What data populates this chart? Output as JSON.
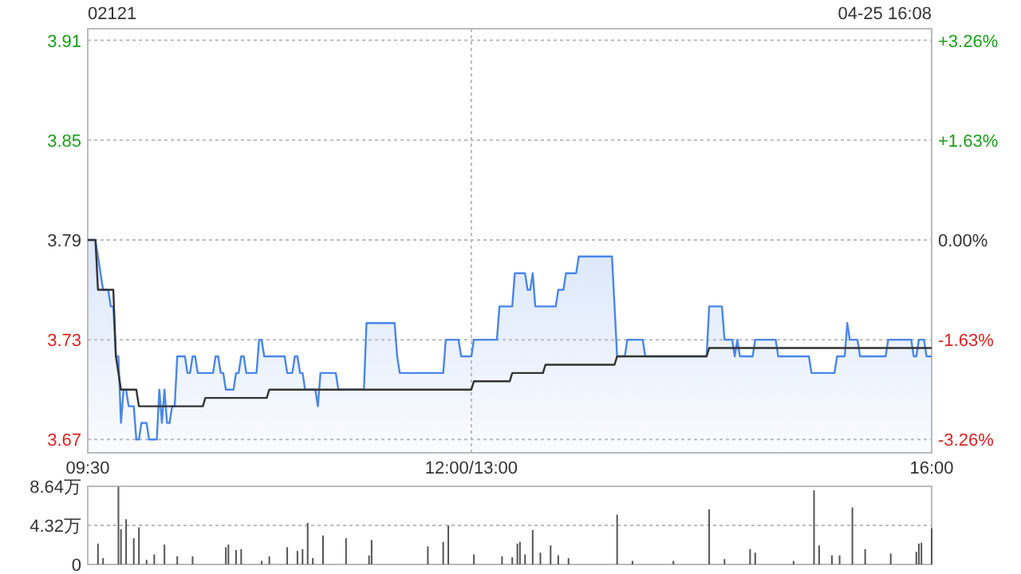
{
  "chart_data": [
    {
      "type": "area",
      "title": "02121",
      "subtitle": "04-25 16:08",
      "ylim": [
        3.662,
        3.917
      ],
      "y2lim": [
        -3.48,
        3.45
      ],
      "categories": [
        "09:30",
        null,
        null,
        null,
        null,
        null,
        null,
        null,
        null,
        null,
        null,
        null,
        null,
        null,
        null,
        null,
        null,
        null,
        null,
        null,
        null,
        null,
        null,
        null,
        null,
        null,
        null,
        null,
        null,
        null,
        null,
        null,
        null,
        null,
        null,
        null,
        null,
        null,
        null,
        null,
        null,
        null,
        null,
        null,
        null,
        null,
        null,
        null,
        null,
        null,
        null,
        null,
        null,
        null,
        null,
        null,
        null,
        null,
        null,
        null,
        null,
        null,
        null,
        null,
        null,
        null,
        null,
        null,
        null,
        null,
        null,
        null,
        null,
        null,
        null,
        null,
        null,
        null,
        null,
        null,
        null,
        null,
        null,
        null,
        null,
        null,
        null,
        null,
        null,
        null,
        null,
        null,
        null,
        null,
        null,
        null,
        null,
        null,
        null,
        null,
        null,
        null,
        null,
        null,
        null,
        null,
        null,
        null,
        null,
        null,
        null,
        null,
        null,
        null,
        null,
        null,
        null,
        null,
        null,
        null,
        null,
        null,
        null,
        null,
        null,
        null,
        null,
        null,
        null,
        null,
        null,
        null,
        null,
        null,
        null,
        null,
        null,
        null,
        null,
        null,
        null,
        null,
        null,
        null,
        null,
        null,
        null,
        null,
        null,
        null,
        "12:00/13:00",
        null,
        null,
        null,
        null,
        null,
        null,
        null,
        null,
        null,
        null,
        null,
        null,
        null,
        null,
        null,
        null,
        null,
        null,
        null,
        null,
        null,
        null,
        null,
        null,
        null,
        null,
        null,
        null,
        null,
        null,
        null,
        null,
        null,
        null,
        null,
        null,
        null,
        null,
        null,
        null,
        null,
        null,
        null,
        null,
        null,
        null,
        null,
        null,
        null,
        null,
        null,
        null,
        null,
        null,
        null,
        null,
        null,
        null,
        null,
        null,
        null,
        null,
        null,
        null,
        null,
        null,
        null,
        null,
        null,
        null,
        null,
        null,
        null,
        null,
        null,
        null,
        null,
        null,
        null,
        null,
        null,
        null,
        null,
        null,
        null,
        null,
        null,
        null,
        null,
        null,
        null,
        null,
        null,
        null,
        null,
        null,
        null,
        null,
        null,
        null,
        null,
        null,
        null,
        null,
        null,
        null,
        null,
        null,
        null,
        null,
        null,
        null,
        null,
        null,
        null,
        null,
        null,
        null,
        null,
        null,
        null,
        null,
        null,
        null,
        null,
        null,
        null,
        null,
        null,
        null,
        null,
        null,
        null,
        null,
        null,
        null,
        null,
        null,
        null,
        null,
        null,
        null,
        null,
        null,
        null,
        null,
        null,
        null,
        null,
        null,
        null,
        null,
        null,
        null,
        null,
        null,
        null,
        null,
        null,
        null,
        null,
        null,
        null,
        null,
        null,
        null,
        null,
        null,
        null,
        null,
        null,
        null,
        null,
        null,
        null,
        null,
        null,
        null,
        null,
        "16:00"
      ],
      "yticks": [
        3.67,
        3.73,
        3.79,
        3.85,
        3.91
      ],
      "y2ticks": [
        {
          "value": -3.26,
          "label": "-3.26%"
        },
        {
          "value": -1.63,
          "label": "-1.63%"
        },
        {
          "value": 0,
          "label": "0.00%"
        },
        {
          "value": 1.63,
          "label": "+1.63%"
        },
        {
          "value": 3.26,
          "label": "+3.26%"
        }
      ],
      "grid": true,
      "series": [
        {
          "color": "#4a86e8",
          "values": [
            3.79,
            3.79,
            3.79,
            3.79,
            3.78,
            3.77,
            3.76,
            3.76,
            3.76,
            3.75,
            3.75,
            3.72,
            3.72,
            3.68,
            3.7,
            3.7,
            3.69,
            3.69,
            3.69,
            3.67,
            3.67,
            3.68,
            3.68,
            3.68,
            3.67,
            3.67,
            3.67,
            3.67,
            3.7,
            3.68,
            3.7,
            3.68,
            3.68,
            3.69,
            3.69,
            3.72,
            3.72,
            3.72,
            3.72,
            3.71,
            3.71,
            3.72,
            3.72,
            3.71,
            3.71,
            3.71,
            3.71,
            3.71,
            3.71,
            3.71,
            3.72,
            3.72,
            3.71,
            3.71,
            3.7,
            3.7,
            3.7,
            3.7,
            3.71,
            3.71,
            3.72,
            3.72,
            3.71,
            3.71,
            3.71,
            3.71,
            3.71,
            3.73,
            3.73,
            3.72,
            3.72,
            3.72,
            3.72,
            3.72,
            3.72,
            3.72,
            3.72,
            3.72,
            3.71,
            3.71,
            3.71,
            3.72,
            3.72,
            3.71,
            3.71,
            3.7,
            3.7,
            3.7,
            3.7,
            3.7,
            3.69,
            3.71,
            3.71,
            3.71,
            3.71,
            3.71,
            3.71,
            3.71,
            3.7,
            3.7,
            3.7,
            3.7,
            3.7,
            3.7,
            3.7,
            3.7,
            3.7,
            3.7,
            3.7,
            3.74,
            3.74,
            3.74,
            3.74,
            3.74,
            3.74,
            3.74,
            3.74,
            3.74,
            3.74,
            3.74,
            3.74,
            3.72,
            3.71,
            3.71,
            3.71,
            3.71,
            3.71,
            3.71,
            3.71,
            3.71,
            3.71,
            3.71,
            3.71,
            3.71,
            3.71,
            3.71,
            3.71,
            3.71,
            3.71,
            3.71,
            3.73,
            3.73,
            3.73,
            3.73,
            3.73,
            3.73,
            3.72,
            3.72,
            3.72,
            3.72,
            3.72,
            3.73,
            3.73,
            3.73,
            3.73,
            3.73,
            3.73,
            3.73,
            3.73,
            3.73,
            3.73,
            3.75,
            3.75,
            3.75,
            3.75,
            3.75,
            3.75,
            3.77,
            3.77,
            3.77,
            3.77,
            3.77,
            3.76,
            3.76,
            3.77,
            3.75,
            3.75,
            3.75,
            3.75,
            3.75,
            3.75,
            3.75,
            3.75,
            3.75,
            3.76,
            3.76,
            3.76,
            3.77,
            3.77,
            3.77,
            3.77,
            3.77,
            3.78,
            3.78,
            3.78,
            3.78,
            3.78,
            3.78,
            3.78,
            3.78,
            3.78,
            3.78,
            3.78,
            3.78,
            3.78,
            3.78,
            3.75,
            3.72,
            3.72,
            3.72,
            3.72,
            3.73,
            3.73,
            3.73,
            3.73,
            3.73,
            3.73,
            3.73,
            3.72,
            3.72,
            3.72,
            3.72,
            3.72,
            3.72,
            3.72,
            3.72,
            3.72,
            3.72,
            3.72,
            3.72,
            3.72,
            3.72,
            3.72,
            3.72,
            3.72,
            3.72,
            3.72,
            3.72,
            3.72,
            3.72,
            3.72,
            3.72,
            3.72,
            3.75,
            3.75,
            3.75,
            3.75,
            3.75,
            3.75,
            3.73,
            3.73,
            3.73,
            3.73,
            3.72,
            3.73,
            3.72,
            3.72,
            3.72,
            3.72,
            3.72,
            3.72,
            3.73,
            3.73,
            3.73,
            3.73,
            3.73,
            3.73,
            3.73,
            3.73,
            3.73,
            3.72,
            3.72,
            3.72,
            3.72,
            3.72,
            3.72,
            3.72,
            3.72,
            3.72,
            3.72,
            3.72,
            3.72,
            3.72,
            3.71,
            3.71,
            3.71,
            3.71,
            3.71,
            3.71,
            3.71,
            3.71,
            3.71,
            3.71,
            3.72,
            3.72,
            3.72,
            3.72,
            3.74,
            3.73,
            3.73,
            3.73,
            3.73,
            3.72,
            3.72,
            3.72,
            3.72,
            3.72,
            3.72,
            3.72,
            3.72,
            3.72,
            3.72,
            3.72,
            3.73,
            3.73,
            3.73,
            3.73,
            3.73,
            3.73,
            3.73,
            3.73,
            3.73,
            3.73,
            3.72,
            3.72,
            3.73,
            3.73,
            3.73,
            3.72,
            3.72,
            3.72
          ]
        },
        {
          "type": "line",
          "color": "#333333",
          "values": [
            3.79,
            3.79,
            3.79,
            3.79,
            3.76,
            3.76,
            3.76,
            3.76,
            3.76,
            3.76,
            3.76,
            3.72,
            3.71,
            3.7,
            3.7,
            3.7,
            3.7,
            3.7,
            3.7,
            3.7,
            3.69,
            3.69,
            3.69,
            3.69,
            3.69,
            3.69,
            3.69,
            3.69,
            3.69,
            3.69,
            3.69,
            3.69,
            3.69,
            3.69,
            3.69,
            3.69,
            3.69,
            3.69,
            3.69,
            3.69,
            3.69,
            3.69,
            3.69,
            3.69,
            3.69,
            3.69,
            3.695,
            3.695,
            3.695,
            3.695,
            3.695,
            3.695,
            3.695,
            3.695,
            3.695,
            3.695,
            3.695,
            3.695,
            3.695,
            3.695,
            3.695,
            3.695,
            3.695,
            3.695,
            3.695,
            3.695,
            3.695,
            3.695,
            3.695,
            3.695,
            3.695,
            3.7,
            3.7,
            3.7,
            3.7,
            3.7,
            3.7,
            3.7,
            3.7,
            3.7,
            3.7,
            3.7,
            3.7,
            3.7,
            3.7,
            3.7,
            3.7,
            3.7,
            3.7,
            3.7,
            3.7,
            3.7,
            3.7,
            3.7,
            3.7,
            3.7,
            3.7,
            3.7,
            3.7,
            3.7,
            3.7,
            3.7,
            3.7,
            3.7,
            3.7,
            3.7,
            3.7,
            3.7,
            3.7,
            3.7,
            3.7,
            3.7,
            3.7,
            3.7,
            3.7,
            3.7,
            3.7,
            3.7,
            3.7,
            3.7,
            3.7,
            3.7,
            3.7,
            3.7,
            3.7,
            3.7,
            3.7,
            3.7,
            3.7,
            3.7,
            3.7,
            3.7,
            3.7,
            3.7,
            3.7,
            3.7,
            3.7,
            3.7,
            3.7,
            3.7,
            3.7,
            3.7,
            3.7,
            3.7,
            3.7,
            3.7,
            3.7,
            3.7,
            3.7,
            3.7,
            3.7,
            3.705,
            3.705,
            3.705,
            3.705,
            3.705,
            3.705,
            3.705,
            3.705,
            3.705,
            3.705,
            3.705,
            3.705,
            3.705,
            3.705,
            3.705,
            3.71,
            3.71,
            3.71,
            3.71,
            3.71,
            3.71,
            3.71,
            3.71,
            3.71,
            3.71,
            3.71,
            3.71,
            3.71,
            3.715,
            3.715,
            3.715,
            3.715,
            3.715,
            3.715,
            3.715,
            3.715,
            3.715,
            3.715,
            3.715,
            3.715,
            3.715,
            3.715,
            3.715,
            3.715,
            3.715,
            3.715,
            3.715,
            3.715,
            3.715,
            3.715,
            3.715,
            3.715,
            3.715,
            3.715,
            3.715,
            3.715,
            3.72,
            3.72,
            3.72,
            3.72,
            3.72,
            3.72,
            3.72,
            3.72,
            3.72,
            3.72,
            3.72,
            3.72,
            3.72,
            3.72,
            3.72,
            3.72,
            3.72,
            3.72,
            3.72,
            3.72,
            3.72,
            3.72,
            3.72,
            3.72,
            3.72,
            3.72,
            3.72,
            3.72,
            3.72,
            3.72,
            3.72,
            3.72,
            3.72,
            3.72,
            3.72,
            3.72,
            3.725,
            3.725,
            3.725,
            3.725,
            3.725,
            3.725,
            3.725,
            3.725,
            3.725,
            3.725,
            3.725,
            3.725,
            3.725,
            3.725,
            3.725,
            3.725,
            3.725,
            3.725,
            3.725,
            3.725,
            3.725,
            3.725,
            3.725,
            3.725,
            3.725,
            3.725,
            3.725,
            3.725,
            3.725,
            3.725,
            3.725,
            3.725,
            3.725,
            3.725,
            3.725,
            3.725,
            3.725,
            3.725,
            3.725,
            3.725,
            3.725,
            3.725,
            3.725,
            3.725,
            3.725,
            3.725,
            3.725,
            3.725,
            3.725,
            3.725,
            3.725,
            3.725,
            3.725,
            3.725,
            3.725,
            3.725,
            3.725,
            3.725,
            3.725,
            3.725,
            3.725,
            3.725,
            3.725,
            3.725,
            3.725,
            3.725,
            3.725,
            3.725,
            3.725,
            3.725,
            3.725,
            3.725,
            3.725,
            3.725,
            3.725,
            3.725,
            3.725,
            3.725,
            3.725,
            3.725,
            3.725,
            3.725,
            3.725,
            3.725,
            3.725,
            3.725,
            3.725,
            3.725
          ]
        }
      ]
    },
    {
      "type": "bar",
      "ylim": [
        0,
        8.64
      ],
      "yticks": [
        0,
        {
          "value": 4.32,
          "label": "4.32万"
        },
        {
          "value": 8.64,
          "label": "8.64万"
        }
      ],
      "tick_labels": "y",
      "grid": "y",
      "color": "#555555",
      "categories": [
        null,
        null,
        null,
        null,
        null,
        null,
        null,
        null,
        null,
        null,
        null,
        null,
        null,
        null,
        null,
        null,
        null,
        null,
        null,
        null,
        null,
        null,
        null,
        null,
        null,
        null,
        null,
        null,
        null,
        null,
        null,
        null,
        null,
        null,
        null,
        null,
        null,
        null,
        null,
        null,
        null,
        null,
        null,
        null,
        null,
        null,
        null,
        null,
        null,
        null,
        null,
        null,
        null,
        null,
        null,
        null,
        null,
        null,
        null,
        null,
        null,
        null,
        null,
        null,
        null,
        null,
        null,
        null,
        null,
        null,
        null,
        null,
        null,
        null,
        null,
        null,
        null,
        null,
        null,
        null,
        null,
        null,
        null,
        null,
        null,
        null,
        null,
        null,
        null,
        null,
        null,
        null,
        null,
        null,
        null,
        null,
        null,
        null,
        null,
        null,
        null,
        null,
        null,
        null,
        null,
        null,
        null,
        null,
        null,
        null,
        null,
        null,
        null,
        null,
        null,
        null,
        null,
        null,
        null,
        null,
        null,
        null,
        null,
        null,
        null,
        null,
        null,
        null,
        null,
        null,
        null,
        null,
        null,
        null,
        null,
        null,
        null,
        null,
        null,
        null,
        null,
        null,
        null,
        null,
        null,
        null,
        null,
        null,
        null,
        null,
        null,
        null,
        null,
        null,
        null,
        null,
        null,
        null,
        null,
        null,
        null,
        null,
        null,
        null,
        null,
        null,
        null,
        null,
        null,
        null,
        null,
        null,
        null,
        null,
        null,
        null,
        null,
        null,
        null,
        null,
        null,
        null,
        null,
        null,
        null,
        null,
        null,
        null,
        null,
        null,
        null,
        null,
        null,
        null,
        null,
        null,
        null,
        null,
        null,
        null,
        null,
        null,
        null,
        null,
        null,
        null,
        null,
        null,
        null,
        null,
        null,
        null,
        null,
        null,
        null,
        null,
        null,
        null,
        null,
        null,
        null,
        null,
        null,
        null,
        null,
        null,
        null,
        null,
        null,
        null,
        null,
        null,
        null,
        null,
        null,
        null,
        null,
        null,
        null,
        null,
        null,
        null,
        null,
        null,
        null,
        null,
        null,
        null,
        null,
        null,
        null,
        null,
        null,
        null,
        null,
        null,
        null,
        null,
        null,
        null,
        null,
        null,
        null,
        null,
        null,
        null,
        null,
        null,
        null,
        null,
        null,
        null,
        null,
        null,
        null,
        null,
        null,
        null,
        null,
        null,
        null,
        null,
        null,
        null,
        null,
        null,
        null,
        null,
        null,
        null,
        null,
        null,
        null,
        null,
        null,
        null,
        null,
        null,
        null,
        null,
        null,
        null,
        null,
        null,
        null,
        null,
        null,
        null,
        null,
        null,
        null,
        null,
        null,
        null,
        null,
        null,
        null,
        null,
        null,
        null,
        null,
        null,
        null,
        null,
        null,
        null,
        null,
        null,
        null,
        null,
        null
      ],
      "values": [
        null,
        null,
        null,
        null,
        2.3,
        null,
        0.7,
        null,
        null,
        null,
        null,
        null,
        8.6,
        3.9,
        null,
        5.0,
        null,
        null,
        2.9,
        null,
        4.1,
        null,
        null,
        0.5,
        null,
        null,
        1.1,
        null,
        null,
        null,
        2.2,
        null,
        null,
        null,
        null,
        0.9,
        null,
        null,
        null,
        null,
        null,
        0.9,
        null,
        null,
        null,
        null,
        null,
        null,
        null,
        null,
        null,
        null,
        null,
        null,
        1.9,
        2.2,
        null,
        null,
        1.6,
        null,
        1.7,
        null,
        null,
        null,
        null,
        null,
        null,
        null,
        0.4,
        null,
        null,
        0.9,
        null,
        null,
        null,
        null,
        null,
        null,
        1.9,
        null,
        null,
        null,
        1.5,
        null,
        1.7,
        null,
        4.6,
        null,
        0.7,
        null,
        null,
        null,
        3.2,
        null,
        null,
        null,
        null,
        null,
        null,
        null,
        null,
        2.9,
        null,
        null,
        null,
        null,
        null,
        null,
        null,
        null,
        1.0,
        2.7,
        null,
        null,
        null,
        null,
        null,
        null,
        null,
        null,
        null,
        null,
        null,
        null,
        null,
        null,
        null,
        null,
        null,
        null,
        null,
        null,
        null,
        2.0,
        null,
        null,
        null,
        null,
        null,
        2.5,
        null,
        4.3,
        null,
        null,
        null,
        null,
        null,
        null,
        null,
        null,
        null,
        1.1,
        null,
        null,
        null,
        null,
        null,
        null,
        null,
        null,
        null,
        null,
        0.9,
        null,
        null,
        null,
        0.8,
        null,
        2.3,
        2.5,
        null,
        1.1,
        null,
        null,
        3.8,
        null,
        null,
        1.3,
        null,
        null,
        null,
        2.1,
        null,
        null,
        1.0,
        null,
        null,
        null,
        0.7,
        null,
        null,
        null,
        null,
        null,
        null,
        null,
        null,
        null,
        null,
        null,
        null,
        null,
        null,
        null,
        null,
        null,
        null,
        5.5,
        null,
        null,
        null,
        null,
        null,
        0.4,
        null,
        null,
        null,
        null,
        null,
        null,
        null,
        null,
        null,
        null,
        null,
        null,
        null,
        null,
        null,
        0.4,
        null,
        null,
        null,
        null,
        null,
        null,
        null,
        null,
        null,
        null,
        null,
        null,
        null,
        6.1,
        null,
        null,
        null,
        null,
        null,
        0.6,
        null,
        null,
        null,
        null,
        null,
        null,
        null,
        null,
        null,
        1.7,
        null,
        1.3,
        null,
        null,
        null,
        null,
        null,
        null,
        null,
        null,
        null,
        null,
        null,
        null,
        null,
        null,
        0.4,
        null,
        null,
        null,
        null,
        null,
        null,
        null,
        8.2,
        null,
        2.1,
        null,
        null,
        null,
        null,
        1.0,
        null,
        null,
        1.0,
        null,
        null,
        null,
        null,
        6.3,
        null,
        null,
        null,
        null,
        1.7,
        null,
        null,
        null,
        null,
        null,
        null,
        null,
        null,
        null,
        1.2,
        null,
        null,
        null,
        null,
        null,
        null,
        null,
        null,
        null,
        1.4,
        2.3,
        2.4,
        null,
        null,
        null,
        4.0
      ]
    }
  ]
}
